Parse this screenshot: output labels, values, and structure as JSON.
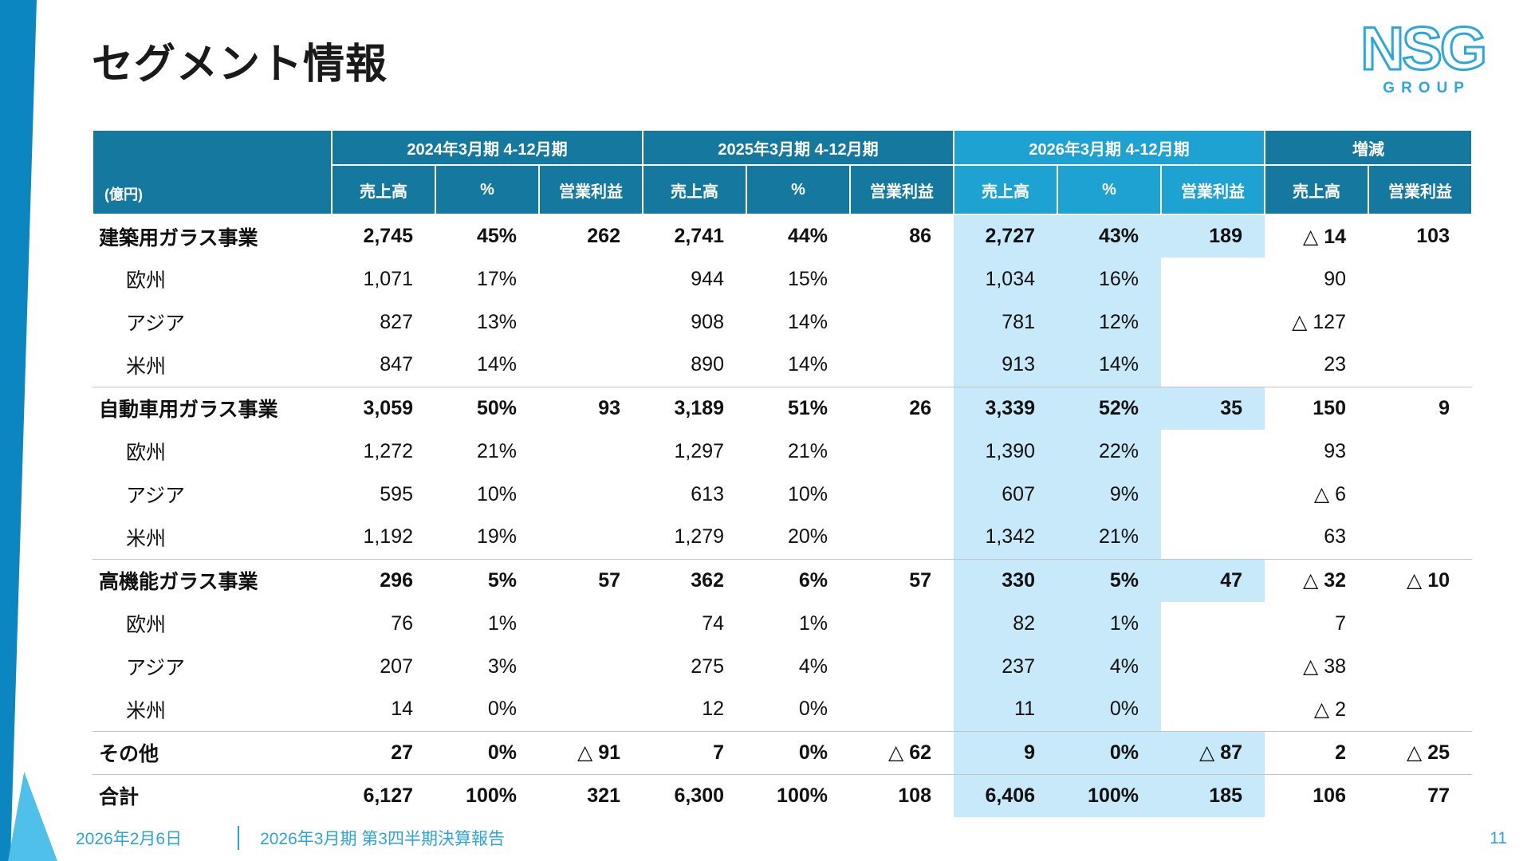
{
  "title": "セグメント情報",
  "logo": {
    "text": "NSG",
    "subtext": "GROUP"
  },
  "colors": {
    "header_dark": "#15799f",
    "header_light": "#1ea2d2",
    "highlight_column": "#c7e9f9",
    "accent_blue": "#2ca4da",
    "ribbon_dark": "#0c86c0",
    "ribbon_light": "#4ec0ea"
  },
  "table": {
    "unit_label": "(億円)",
    "groups": [
      {
        "label": "2024年3月期 4-12月期",
        "theme": "dark",
        "columns": [
          "売上高",
          "%",
          "営業利益"
        ]
      },
      {
        "label": "2025年3月期 4-12月期",
        "theme": "dark",
        "columns": [
          "売上高",
          "%",
          "営業利益"
        ]
      },
      {
        "label": "2026年3月期 4-12月期",
        "theme": "light",
        "columns": [
          "売上高",
          "%",
          "営業利益"
        ]
      },
      {
        "label": "増減",
        "theme": "dark",
        "columns": [
          "売上高",
          "営業利益"
        ]
      }
    ],
    "rows": [
      {
        "label": "建築用ガラス事業",
        "bold": true,
        "sep": false,
        "values": [
          "2,745",
          "45%",
          "262",
          "2,741",
          "44%",
          "86",
          "2,727",
          "43%",
          "189",
          "△ 14",
          "103"
        ]
      },
      {
        "label": "欧州",
        "bold": false,
        "sep": false,
        "values": [
          "1,071",
          "17%",
          "",
          "944",
          "15%",
          "",
          "1,034",
          "16%",
          "",
          "90",
          ""
        ]
      },
      {
        "label": "アジア",
        "bold": false,
        "sep": false,
        "values": [
          "827",
          "13%",
          "",
          "908",
          "14%",
          "",
          "781",
          "12%",
          "",
          "△ 127",
          ""
        ]
      },
      {
        "label": "米州",
        "bold": false,
        "sep": false,
        "values": [
          "847",
          "14%",
          "",
          "890",
          "14%",
          "",
          "913",
          "14%",
          "",
          "23",
          ""
        ]
      },
      {
        "label": "自動車用ガラス事業",
        "bold": true,
        "sep": true,
        "values": [
          "3,059",
          "50%",
          "93",
          "3,189",
          "51%",
          "26",
          "3,339",
          "52%",
          "35",
          "150",
          "9"
        ]
      },
      {
        "label": "欧州",
        "bold": false,
        "sep": false,
        "values": [
          "1,272",
          "21%",
          "",
          "1,297",
          "21%",
          "",
          "1,390",
          "22%",
          "",
          "93",
          ""
        ]
      },
      {
        "label": "アジア",
        "bold": false,
        "sep": false,
        "values": [
          "595",
          "10%",
          "",
          "613",
          "10%",
          "",
          "607",
          "9%",
          "",
          "△ 6",
          ""
        ]
      },
      {
        "label": "米州",
        "bold": false,
        "sep": false,
        "values": [
          "1,192",
          "19%",
          "",
          "1,279",
          "20%",
          "",
          "1,342",
          "21%",
          "",
          "63",
          ""
        ]
      },
      {
        "label": "高機能ガラス事業",
        "bold": true,
        "sep": true,
        "values": [
          "296",
          "5%",
          "57",
          "362",
          "6%",
          "57",
          "330",
          "5%",
          "47",
          "△ 32",
          "△ 10"
        ]
      },
      {
        "label": "欧州",
        "bold": false,
        "sep": false,
        "values": [
          "76",
          "1%",
          "",
          "74",
          "1%",
          "",
          "82",
          "1%",
          "",
          "7",
          ""
        ]
      },
      {
        "label": "アジア",
        "bold": false,
        "sep": false,
        "values": [
          "207",
          "3%",
          "",
          "275",
          "4%",
          "",
          "237",
          "4%",
          "",
          "△ 38",
          ""
        ]
      },
      {
        "label": "米州",
        "bold": false,
        "sep": false,
        "values": [
          "14",
          "0%",
          "",
          "12",
          "0%",
          "",
          "11",
          "0%",
          "",
          "△ 2",
          ""
        ]
      },
      {
        "label": "その他",
        "bold": true,
        "sep": true,
        "values": [
          "27",
          "0%",
          "△ 91",
          "7",
          "0%",
          "△ 62",
          "9",
          "0%",
          "△ 87",
          "2",
          "△ 25"
        ]
      },
      {
        "label": "合計",
        "bold": true,
        "sep": true,
        "values": [
          "6,127",
          "100%",
          "321",
          "6,300",
          "100%",
          "108",
          "6,406",
          "100%",
          "185",
          "106",
          "77"
        ]
      }
    ]
  },
  "footer": {
    "date": "2026年2月6日",
    "doc_title": "2026年3月期 第3四半期決算報告",
    "page": "11"
  }
}
